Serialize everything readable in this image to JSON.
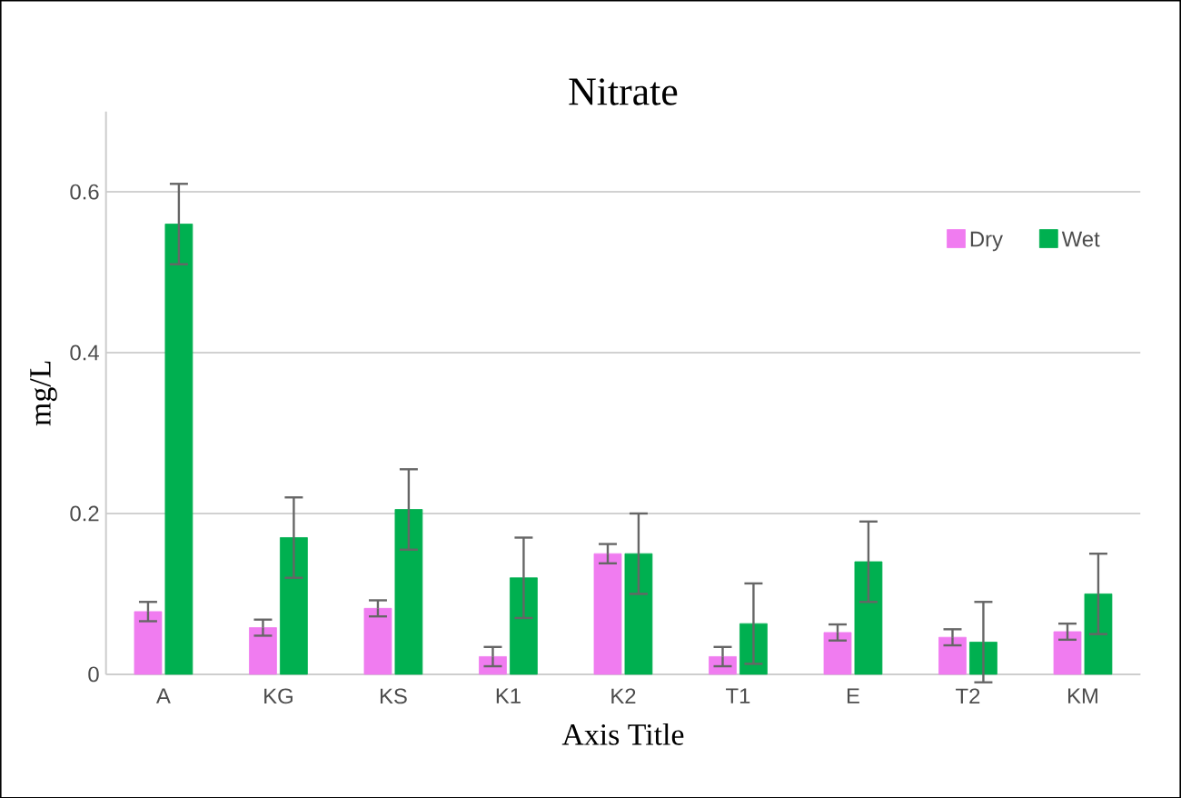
{
  "chart_data": {
    "type": "bar",
    "title": "Nitrate",
    "xlabel": "Axis Title",
    "ylabel": "mg/L",
    "categories": [
      "A",
      "KG",
      "KS",
      "K1",
      "K2",
      "T1",
      "E",
      "T2",
      "KM"
    ],
    "series": [
      {
        "name": "Dry",
        "color": "#f07cf0",
        "values": [
          0.078,
          0.058,
          0.082,
          0.022,
          0.15,
          0.022,
          0.052,
          0.046,
          0.053
        ],
        "errors": [
          0.012,
          0.01,
          0.01,
          0.012,
          0.012,
          0.012,
          0.01,
          0.01,
          0.01
        ]
      },
      {
        "name": "Wet",
        "color": "#00b050",
        "values": [
          0.56,
          0.17,
          0.205,
          0.12,
          0.15,
          0.063,
          0.14,
          0.04,
          0.1
        ],
        "errors": [
          0.05,
          0.05,
          0.05,
          0.05,
          0.05,
          0.05,
          0.05,
          0.05,
          0.05
        ]
      }
    ],
    "ylim": [
      0,
      0.7
    ],
    "yticks": [
      0,
      0.2,
      0.4,
      0.6
    ],
    "grid": "y",
    "legend": "top right"
  }
}
